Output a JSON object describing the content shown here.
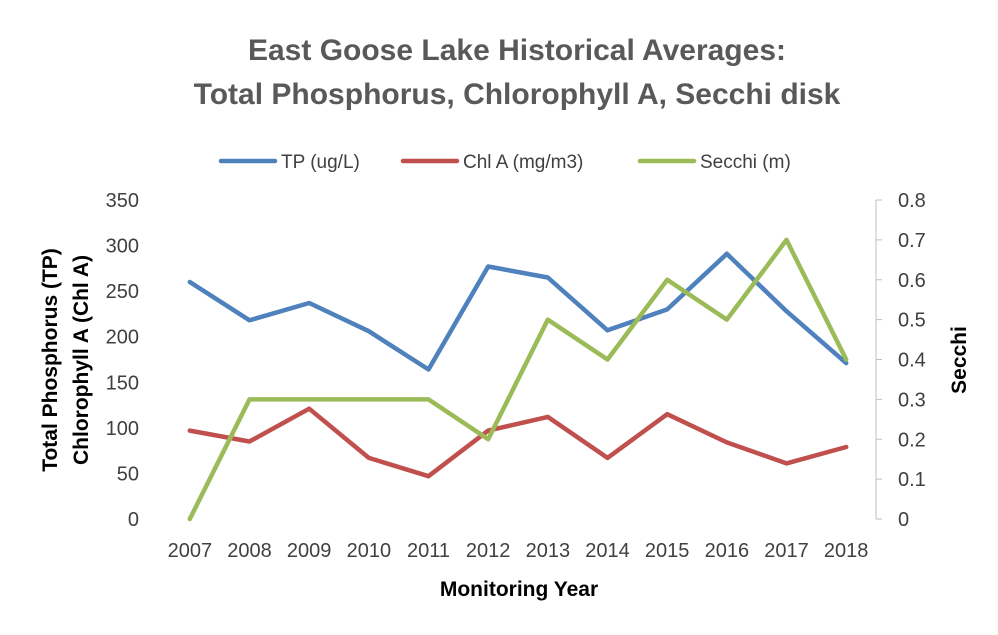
{
  "chart_data": {
    "type": "line",
    "title_line1": "East Goose Lake Historical Averages:",
    "title_line2": "Total Phosphorus, Chlorophyll A, Secchi disk",
    "xlabel": "Monitoring Year",
    "ylabel_line1": "Total Phosphorus (TP)",
    "ylabel_line2": "Chlorophyll A (Chl A)",
    "y2label": "Secchi",
    "categories": [
      "2007",
      "2008",
      "2009",
      "2010",
      "2011",
      "2012",
      "2013",
      "2014",
      "2015",
      "2016",
      "2017",
      "2018"
    ],
    "ylim": [
      0,
      350
    ],
    "yticks": [
      0,
      50,
      100,
      150,
      200,
      250,
      300,
      350
    ],
    "y2lim": [
      0,
      0.8
    ],
    "y2ticks": [
      "0",
      "0.1",
      "0.2",
      "0.3",
      "0.4",
      "0.5",
      "0.6",
      "0.7",
      "0.8"
    ],
    "grid": false,
    "legend_position": "top",
    "series": [
      {
        "name": "TP (ug/L)",
        "axis": "left",
        "color": "#4F81BD",
        "values": [
          260,
          218,
          237,
          206,
          164,
          277,
          265,
          207,
          230,
          291,
          228,
          171
        ]
      },
      {
        "name": "Chl A (mg/m3)",
        "axis": "left",
        "color": "#C0504D",
        "values": [
          97,
          85,
          121,
          67,
          47,
          97,
          112,
          67,
          115,
          84,
          61,
          79
        ]
      },
      {
        "name": "Secchi (m)",
        "axis": "right",
        "color": "#9BBB59",
        "values": [
          0,
          0.3,
          0.3,
          0.3,
          0.3,
          0.2,
          0.5,
          0.4,
          0.6,
          0.5,
          0.7,
          0.4
        ]
      }
    ]
  }
}
